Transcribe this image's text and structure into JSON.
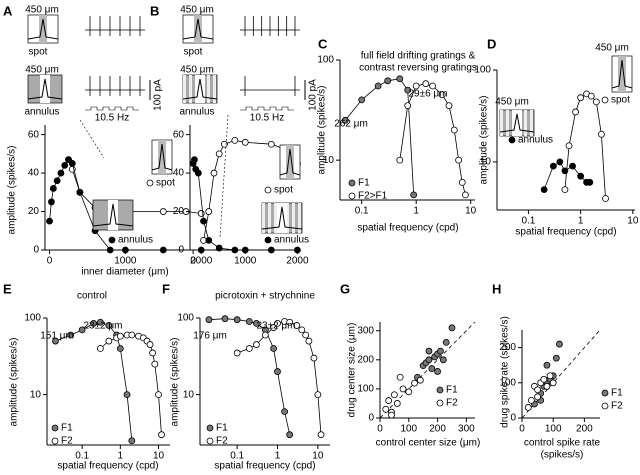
{
  "chart_data": [
    {
      "type": "line",
      "panel": "A",
      "ylabel": "amplitude (spikes/s)",
      "xlabel": "inner diameter (μm)",
      "xlim": [
        -60,
        2050
      ],
      "ylim": [
        0,
        65
      ],
      "xticks": [
        0,
        1000,
        2000
      ],
      "yticks": [
        0,
        20,
        40,
        60
      ],
      "annotations": [
        "450 μm",
        "spot",
        "450 μm",
        "annulus",
        "100 pA",
        "10.5 Hz"
      ],
      "series": [
        {
          "name": "spot",
          "color": "#ffffff",
          "x": [
            250,
            300,
            400,
            600,
            800,
            1000,
            1500,
            1800,
            2000
          ],
          "values": [
            47,
            42,
            30,
            22,
            21,
            20,
            20,
            20,
            19
          ]
        },
        {
          "name": "annulus",
          "color": "#000000",
          "x": [
            0,
            25,
            50,
            100,
            150,
            200,
            250,
            300,
            400,
            600,
            800,
            1000,
            1500,
            2000
          ],
          "values": [
            15,
            25,
            32,
            36,
            40,
            44,
            47,
            45,
            30,
            10,
            0,
            0,
            0,
            0
          ]
        }
      ]
    },
    {
      "type": "line",
      "panel": "B",
      "xlim": [
        -60,
        2050
      ],
      "ylim": [
        0,
        65
      ],
      "xticks": [
        0,
        1000,
        2000
      ],
      "yticks": [
        0,
        20,
        40,
        60
      ],
      "annotations": [
        "450 μm",
        "spot",
        "450 μm",
        "annulus",
        "100 pA",
        "10.5 Hz"
      ],
      "series": [
        {
          "name": "spot",
          "color": "#ffffff",
          "x": [
            200,
            300,
            400,
            500,
            600,
            800,
            1000,
            1500,
            1800,
            2000
          ],
          "values": [
            5,
            20,
            40,
            50,
            55,
            57,
            56,
            55,
            52,
            45
          ]
        },
        {
          "name": "annulus",
          "color": "#000000",
          "x": [
            0,
            25,
            50,
            100,
            200,
            300,
            500,
            800,
            1000,
            1500,
            2000
          ],
          "values": [
            45,
            47,
            42,
            40,
            15,
            5,
            1,
            0,
            0,
            0,
            0
          ]
        }
      ]
    },
    {
      "type": "line",
      "panel": "C",
      "log": true,
      "ylabel": "amplitude (spikes/s)",
      "xlabel": "spatial frequency (cpd)",
      "xlim": [
        0.04,
        12
      ],
      "ylim": [
        4,
        100
      ],
      "xticks": [
        0.1,
        1,
        10
      ],
      "yticks": [
        10,
        100
      ],
      "annotations": [
        "full field drifting gratings &",
        "contrast reversing gratings",
        "262 μm",
        "29±6 μm"
      ],
      "series": [
        {
          "name": "F1",
          "color": "#777777",
          "x": [
            0.05,
            0.1,
            0.2,
            0.3,
            0.5,
            0.7,
            0.9
          ],
          "values": [
            25,
            40,
            55,
            62,
            65,
            50,
            4.5
          ]
        },
        {
          "name": "F2>F1",
          "color": "#ffffff",
          "x": [
            0.5,
            0.7,
            1,
            1.5,
            2,
            3,
            4,
            5,
            6,
            7,
            8
          ],
          "values": [
            10,
            35,
            55,
            58,
            55,
            45,
            35,
            20,
            10,
            6,
            4.5
          ]
        }
      ]
    },
    {
      "type": "line",
      "panel": "D",
      "log": true,
      "ylabel": "amplitude (spikes/s)",
      "xlabel": "spatial frequency (cpd)",
      "xlim": [
        0.025,
        11
      ],
      "ylim": [
        3,
        100
      ],
      "xticks": [
        0.1,
        1,
        10
      ],
      "yticks": [
        10,
        100
      ],
      "annotations": [
        "450 μm",
        "450 μm"
      ],
      "series": [
        {
          "name": "spot",
          "color": "#ffffff",
          "x": [
            0.5,
            0.6,
            0.8,
            1,
            1.3,
            1.6,
            2,
            2.5,
            3
          ],
          "values": [
            5,
            15,
            35,
            50,
            55,
            52,
            45,
            20,
            4
          ]
        },
        {
          "name": "annulus",
          "color": "#000000",
          "x": [
            0.2,
            0.3,
            0.4,
            0.5,
            0.7,
            1,
            1.3,
            1.5
          ],
          "values": [
            5,
            9,
            10,
            8,
            9,
            7,
            6,
            6
          ]
        }
      ]
    },
    {
      "type": "line",
      "panel": "E",
      "log": true,
      "ylabel": "amplitude (spikes/s)",
      "xlabel": "spatial frequency (cpd)",
      "xlim": [
        0.012,
        20
      ],
      "ylim": [
        2.2,
        100
      ],
      "xticks": [
        0.1,
        1,
        10
      ],
      "yticks": [
        10,
        100
      ],
      "annotations": [
        "control",
        "151 μm",
        "23±2 μm"
      ],
      "series": [
        {
          "name": "F1",
          "color": "#777777",
          "x": [
            0.02,
            0.05,
            0.1,
            0.2,
            0.3,
            0.5,
            0.8,
            1,
            1.5,
            2
          ],
          "values": [
            50,
            60,
            70,
            85,
            88,
            80,
            60,
            40,
            10,
            2.5
          ]
        },
        {
          "name": "F2",
          "color": "#ffffff",
          "x": [
            0.3,
            0.5,
            0.8,
            1,
            1.5,
            2,
            3,
            4,
            5,
            6,
            7,
            8,
            10,
            12
          ],
          "values": [
            40,
            50,
            55,
            58,
            60,
            60,
            58,
            55,
            50,
            45,
            35,
            25,
            10,
            3
          ]
        }
      ]
    },
    {
      "type": "line",
      "panel": "F",
      "log": true,
      "ylabel": "amplitude (spikes/s)",
      "xlabel": "spatial frequency (cpd)",
      "xlim": [
        0.012,
        20
      ],
      "ylim": [
        2.2,
        100
      ],
      "xticks": [
        0.1,
        1,
        10
      ],
      "yticks": [
        10,
        100
      ],
      "annotations": [
        "picrotoxin + strychnine",
        "176 μm",
        "23±2 μm"
      ],
      "series": [
        {
          "name": "F1",
          "color": "#777777",
          "x": [
            0.02,
            0.05,
            0.1,
            0.2,
            0.3,
            0.5,
            0.8,
            1,
            1.5,
            2
          ],
          "values": [
            95,
            98,
            95,
            90,
            85,
            70,
            40,
            20,
            6,
            3
          ]
        },
        {
          "name": "F2",
          "color": "#ffffff",
          "x": [
            0.1,
            0.2,
            0.3,
            0.5,
            0.8,
            1,
            1.5,
            2,
            3,
            4,
            5,
            6,
            8,
            10,
            12
          ],
          "values": [
            35,
            40,
            45,
            60,
            75,
            85,
            90,
            88,
            80,
            70,
            60,
            50,
            30,
            10,
            3
          ]
        }
      ]
    },
    {
      "type": "scatter",
      "panel": "G",
      "ylabel": "drug center size (μm)",
      "xlabel_lines": [
        "control center size (μm)"
      ],
      "xlim": [
        0,
        330
      ],
      "ylim": [
        0,
        330
      ],
      "xticks": [
        0,
        100,
        200,
        300
      ],
      "yticks": [
        0,
        100,
        200,
        300
      ],
      "series": [
        {
          "name": "F1",
          "color": "#777777",
          "x": [
            130,
            150,
            160,
            170,
            180,
            190,
            200,
            210,
            220,
            230,
            250,
            170,
            200
          ],
          "values": [
            140,
            180,
            190,
            200,
            170,
            210,
            220,
            230,
            200,
            260,
            310,
            230,
            160
          ]
        },
        {
          "name": "F2",
          "color": "#ffffff",
          "x": [
            20,
            30,
            40,
            50,
            60,
            80,
            100,
            120,
            140,
            40,
            70
          ],
          "values": [
            30,
            60,
            20,
            80,
            50,
            100,
            90,
            120,
            130,
            10,
            140
          ]
        }
      ]
    },
    {
      "type": "scatter",
      "panel": "H",
      "ylabel": "drug spike rate (spikes/s)",
      "xlabel_lines": [
        "control spike rate",
        "(spikes/s)"
      ],
      "xlim": [
        0,
        250
      ],
      "ylim": [
        0,
        250
      ],
      "xticks": [
        0,
        100,
        200
      ],
      "yticks": [
        0,
        100,
        200
      ],
      "series": [
        {
          "name": "F1",
          "color": "#777777",
          "x": [
            40,
            50,
            60,
            70,
            80,
            90,
            100,
            110,
            120,
            80,
            60
          ],
          "values": [
            40,
            60,
            70,
            90,
            100,
            110,
            120,
            170,
            210,
            150,
            50
          ]
        },
        {
          "name": "F2",
          "color": "#ffffff",
          "x": [
            20,
            30,
            40,
            50,
            60,
            70,
            80,
            100,
            90,
            50
          ],
          "values": [
            30,
            50,
            90,
            80,
            100,
            110,
            90,
            100,
            120,
            60
          ]
        }
      ]
    }
  ]
}
